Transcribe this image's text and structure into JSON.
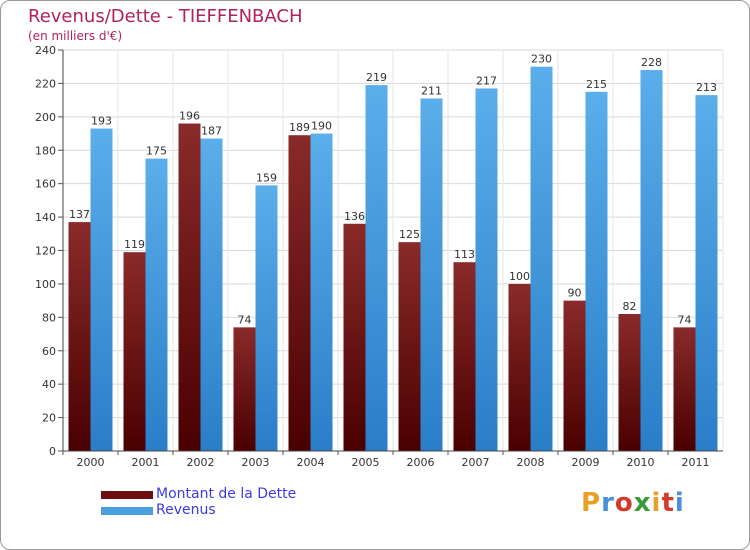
{
  "title": "Revenus/Dette - TIEFFENBACH",
  "subtitle": "(en milliers d'€)",
  "legend": {
    "items": [
      {
        "label": "Montant de la Dette",
        "color": "#6e1010"
      },
      {
        "label": "Revenus",
        "color": "#4a9fe0"
      }
    ]
  },
  "logo": {
    "text": "Proxiti",
    "colors": [
      "#e8a02a",
      "#4a8fd8",
      "#d43a2a",
      "#3a9a3a",
      "#e8a02a",
      "#d43a2a",
      "#4a8fd8"
    ]
  },
  "chart_data": {
    "type": "bar",
    "categories": [
      "2000",
      "2001",
      "2002",
      "2003",
      "2004",
      "2005",
      "2006",
      "2007",
      "2008",
      "2009",
      "2010",
      "2011"
    ],
    "series": [
      {
        "name": "Montant de la Dette",
        "values": [
          137,
          119,
          196,
          74,
          189,
          136,
          125,
          113,
          100,
          90,
          82,
          74
        ],
        "color": "#6e1010"
      },
      {
        "name": "Revenus",
        "values": [
          193,
          175,
          187,
          159,
          190,
          219,
          211,
          217,
          230,
          215,
          228,
          213
        ],
        "color": "#4a9fe0"
      }
    ],
    "ylim": [
      0,
      240
    ],
    "yticks": [
      0,
      20,
      40,
      60,
      80,
      100,
      120,
      140,
      160,
      180,
      200,
      220,
      240
    ],
    "grid": true,
    "data_labels": true,
    "legend_position": "bottom-left"
  }
}
